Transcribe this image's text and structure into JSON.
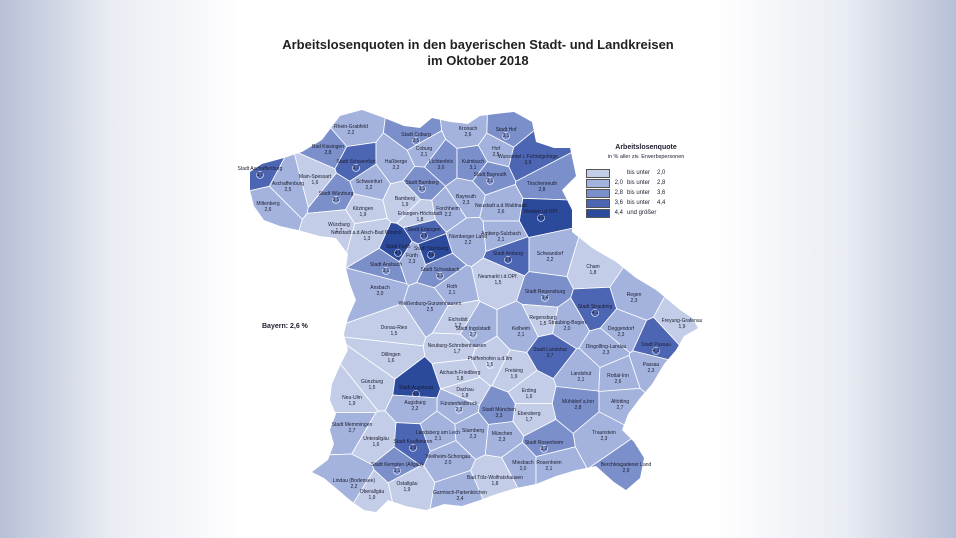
{
  "title": {
    "line1": "Arbeitslosenquoten in den bayerischen Stadt- und Landkreisen",
    "line2": "im Oktober 2018"
  },
  "legend": {
    "title": "Arbeitslosenquote",
    "subtitle": "in % aller ziv. Erwerbspersonen",
    "classes": [
      {
        "lo": "",
        "mid": "bis unter",
        "hi": "2,0",
        "color": "#c3cde8"
      },
      {
        "lo": "2,0",
        "mid": "bis unter",
        "hi": "2,8",
        "color": "#a4b3de"
      },
      {
        "lo": "2,8",
        "mid": "bis unter",
        "hi": "3,6",
        "color": "#7b8fca"
      },
      {
        "lo": "3,6",
        "mid": "bis unter",
        "hi": "4,4",
        "color": "#4d66b3"
      },
      {
        "lo": "4,4",
        "mid": "und größer",
        "hi": "",
        "color": "#2b4a9c"
      }
    ]
  },
  "bayern_total": "Bayern: 2,6 %",
  "districts": [
    {
      "name": "Rhein-Grabfeld",
      "value": "2,2"
    },
    {
      "name": "Stadt Coburg",
      "value": "3,5"
    },
    {
      "name": "Kronach",
      "value": "2,6"
    },
    {
      "name": "Stadt Hof",
      "value": "3,1"
    },
    {
      "name": "Bad Kissingen",
      "value": "2,8"
    },
    {
      "name": "Coburg",
      "value": "2,1"
    },
    {
      "name": "Hof",
      "value": "2,5"
    },
    {
      "name": "Stadt Schweinfurt",
      "value": "3,7"
    },
    {
      "name": "Haßberge",
      "value": "2,2"
    },
    {
      "name": "Lichtenfels",
      "value": "3,0"
    },
    {
      "name": "Kulmbach",
      "value": "3,1"
    },
    {
      "name": "Wunsiedel i. Fichtelgebirge",
      "value": "3,9"
    },
    {
      "name": "Stadt Aschaffenburg",
      "value": "3,7"
    },
    {
      "name": "Main-Spessart",
      "value": "1,6"
    },
    {
      "name": "Schweinfurt",
      "value": "2,2"
    },
    {
      "name": "Stadt Bayreuth",
      "value": "3,1"
    },
    {
      "name": "Tirschenreuth",
      "value": "2,8"
    },
    {
      "name": "Aschaffenburg",
      "value": "2,5"
    },
    {
      "name": "Stadt Bamberg",
      "value": "3,1"
    },
    {
      "name": "Bayreuth",
      "value": "2,3"
    },
    {
      "name": "Miltenberg",
      "value": "2,6"
    },
    {
      "name": "Stadt Würzburg",
      "value": "3,5"
    },
    {
      "name": "Bamberg",
      "value": "1,9"
    },
    {
      "name": "Forchheim",
      "value": "2,2"
    },
    {
      "name": "Neustadt a.d.Waldnaab",
      "value": "2,6"
    },
    {
      "name": "Weiden i.d.OPf.",
      "value": "4,6"
    },
    {
      "name": "Kitzingen",
      "value": "1,9"
    },
    {
      "name": "Erlangen-Höchstadt",
      "value": "1,8"
    },
    {
      "name": "Würzburg",
      "value": "1,7"
    },
    {
      "name": "Stadt Erlangen",
      "value": "3,8"
    },
    {
      "name": "Nürnberger Land",
      "value": "2,2"
    },
    {
      "name": "Amberg-Sulzbach",
      "value": "2,1"
    },
    {
      "name": "Neustadt a.d.Aisch-Bad Windsh.",
      "value": "1,3"
    },
    {
      "name": "Stadt Fürth",
      "value": "4,5"
    },
    {
      "name": "Stadt Amberg",
      "value": "3,8"
    },
    {
      "name": "Stadt Nürnberg",
      "value": "4,6"
    },
    {
      "name": "Fürth",
      "value": "2,3"
    },
    {
      "name": "Schwandorf",
      "value": "2,2"
    },
    {
      "name": "Stadt Ansbach",
      "value": "3,1"
    },
    {
      "name": "Stadt Schwabach",
      "value": "3,1"
    },
    {
      "name": "Neumarkt i.d.OPf.",
      "value": "1,5"
    },
    {
      "name": "Cham",
      "value": "1,8"
    },
    {
      "name": "Ansbach",
      "value": "2,0"
    },
    {
      "name": "Roth",
      "value": "2,1"
    },
    {
      "name": "Stadt Regensburg",
      "value": "3,4"
    },
    {
      "name": "Regen",
      "value": "2,3"
    },
    {
      "name": "Weißenburg-Gunzenhausen",
      "value": "2,5"
    },
    {
      "name": "Stadt Straubing",
      "value": "4,1"
    },
    {
      "name": "Eichstätt",
      "value": "1,2"
    },
    {
      "name": "Regensburg",
      "value": "1,5"
    },
    {
      "name": "Freyung-Grafenau",
      "value": "1,9"
    },
    {
      "name": "Straubing-Bogen",
      "value": "2,0"
    },
    {
      "name": "Donau-Ries",
      "value": "1,5"
    },
    {
      "name": "Stadt Ingolstadt",
      "value": "2,7"
    },
    {
      "name": "Kelheim",
      "value": "2,1"
    },
    {
      "name": "Deggendorf",
      "value": "2,3"
    },
    {
      "name": "Stadt Passau",
      "value": "4,3"
    },
    {
      "name": "Neuburg-Schrobenhausen",
      "value": "1,7"
    },
    {
      "name": "Dingolfing-Landau",
      "value": "2,3"
    },
    {
      "name": "Dillingen",
      "value": "1,6"
    },
    {
      "name": "Pfaffenhofen a.d.Ilm",
      "value": "1,5"
    },
    {
      "name": "Stadt Landshut",
      "value": "3,7"
    },
    {
      "name": "Passau",
      "value": "2,3"
    },
    {
      "name": "Aichach-Friedberg",
      "value": "1,8"
    },
    {
      "name": "Freising",
      "value": "1,9"
    },
    {
      "name": "Landshut",
      "value": "2,1"
    },
    {
      "name": "Rottal-Inn",
      "value": "2,6"
    },
    {
      "name": "Günzburg",
      "value": "1,5"
    },
    {
      "name": "Stadt Augsburg",
      "value": "4,5"
    },
    {
      "name": "Dachau",
      "value": "1,8"
    },
    {
      "name": "Erding",
      "value": "1,6"
    },
    {
      "name": "Neu-Ulm",
      "value": "1,9"
    },
    {
      "name": "Augsburg",
      "value": "2,2"
    },
    {
      "name": "Fürstenfeldbruck",
      "value": "2,3"
    },
    {
      "name": "Stadt München",
      "value": "3,3"
    },
    {
      "name": "Mühldorf a.Inn",
      "value": "2,8"
    },
    {
      "name": "Altötting",
      "value": "2,7"
    },
    {
      "name": "Ebersberg",
      "value": "1,7"
    },
    {
      "name": "Stadt Memmingen",
      "value": "2,7"
    },
    {
      "name": "Landsberg am Lech",
      "value": "2,1"
    },
    {
      "name": "Starnberg",
      "value": "2,3"
    },
    {
      "name": "München",
      "value": "2,3"
    },
    {
      "name": "Traunstein",
      "value": "2,3"
    },
    {
      "name": "Unterallgäu",
      "value": "1,6"
    },
    {
      "name": "Stadt Kaufbeuren",
      "value": "3,8"
    },
    {
      "name": "Stadt Rosenheim",
      "value": "3,2"
    },
    {
      "name": "Berchtesgadener Land",
      "value": "2,9"
    },
    {
      "name": "Weilheim-Schongau",
      "value": "2,0"
    },
    {
      "name": "Stadt Kempten (Allgäu)",
      "value": "3,1"
    },
    {
      "name": "Miesbach",
      "value": "2,0"
    },
    {
      "name": "Rosenheim",
      "value": "2,1"
    },
    {
      "name": "Bad Tölz-Wolfratshausen",
      "value": "1,8"
    },
    {
      "name": "Lindau (Bodensee)",
      "value": "2,2"
    },
    {
      "name": "Ostallgäu",
      "value": "1,9"
    },
    {
      "name": "Garmisch-Partenkirchen",
      "value": "2,4"
    },
    {
      "name": "Oberallgäu",
      "value": "1,9"
    }
  ]
}
